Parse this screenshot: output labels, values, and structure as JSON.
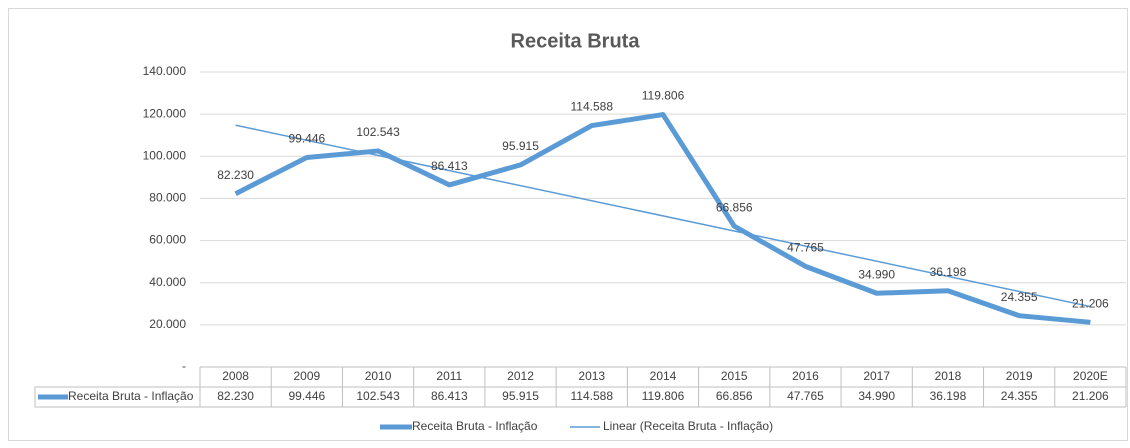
{
  "chart_data": {
    "type": "line",
    "title": "Receita Bruta",
    "categories": [
      "2008",
      "2009",
      "2010",
      "2011",
      "2012",
      "2013",
      "2014",
      "2015",
      "2016",
      "2017",
      "2018",
      "2019",
      "2020E"
    ],
    "series": [
      {
        "name": "Receita Bruta - Inflação",
        "color": "#5b9bd5",
        "values": [
          82230,
          99446,
          102543,
          86413,
          95915,
          114588,
          119806,
          66856,
          47765,
          34990,
          36198,
          24355,
          21206
        ],
        "value_labels": [
          "82.230",
          "99.446",
          "102.543",
          "86.413",
          "95.915",
          "114.588",
          "119.806",
          "66.856",
          "47.765",
          "34.990",
          "36.198",
          "24.355",
          "21.206"
        ]
      }
    ],
    "trendline": {
      "type": "linear",
      "name": "Linear (Receita Bruta - Inflação)"
    },
    "ylim": [
      0,
      140000
    ],
    "yticks": [
      {
        "value": 0,
        "label": "-"
      },
      {
        "value": 20000,
        "label": "20.000"
      },
      {
        "value": 40000,
        "label": "40.000"
      },
      {
        "value": 60000,
        "label": "60.000"
      },
      {
        "value": 80000,
        "label": "80.000"
      },
      {
        "value": 100000,
        "label": "100.000"
      },
      {
        "value": 120000,
        "label": "120.000"
      },
      {
        "value": 140000,
        "label": "140.000"
      }
    ],
    "grid": true,
    "data_table": true,
    "legend": "bottom"
  }
}
